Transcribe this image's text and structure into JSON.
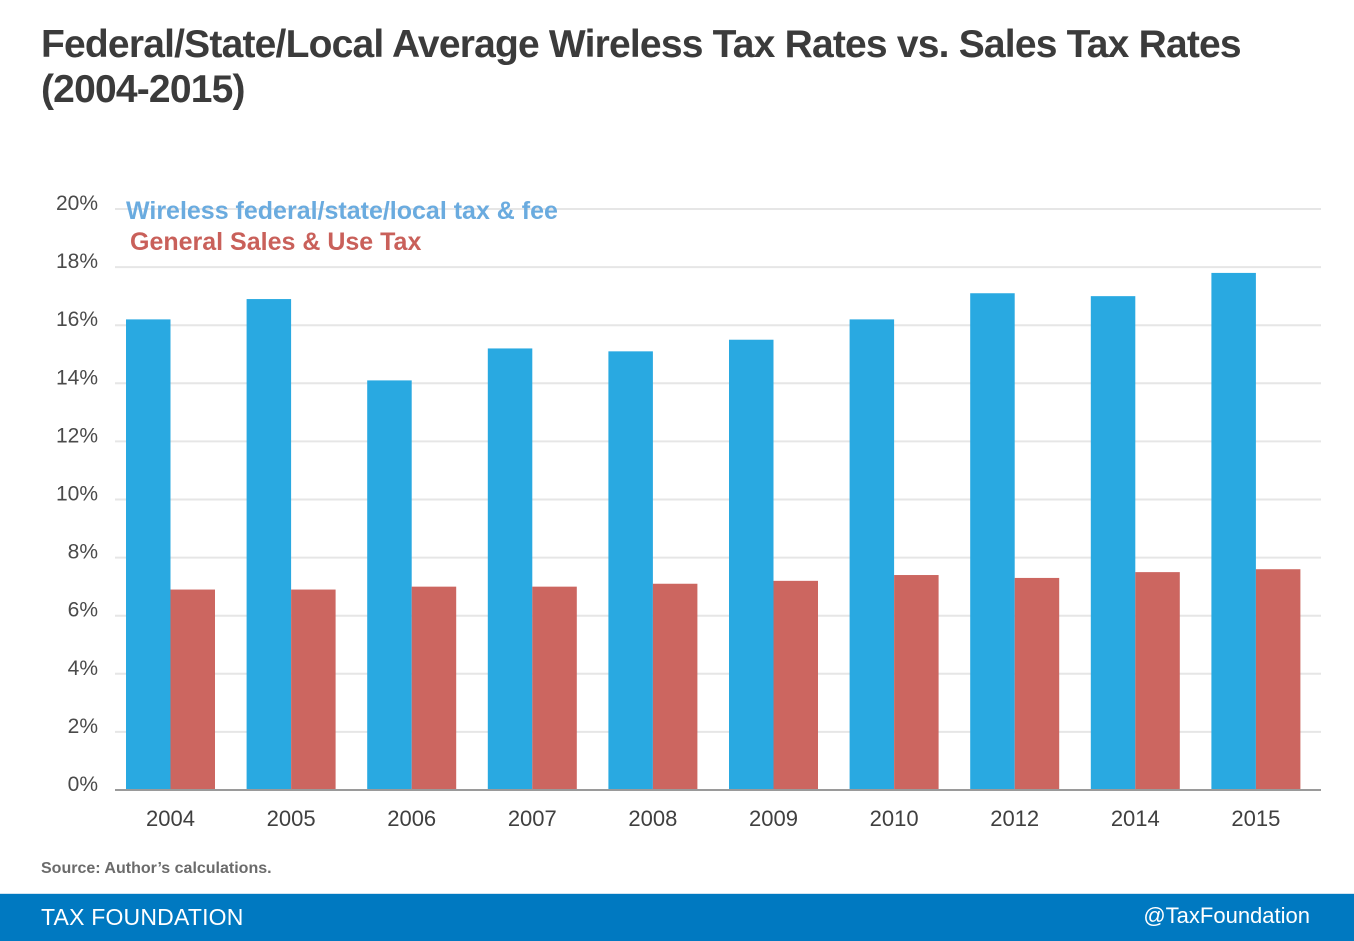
{
  "header": {
    "title_line1": "Federal/State/Local Average Wireless Tax Rates vs. Sales Tax Rates",
    "title_line2": "(2004-2015)"
  },
  "colors": {
    "wireless": "#29a9e1",
    "sales": "#cc6660",
    "legend_wireless": "#6aabdf",
    "legend_sales": "#c9605a",
    "gridline": "#e6e6e6",
    "axis": "#9a9a9a",
    "footer_bg": "#0079c1"
  },
  "chart_data": {
    "type": "bar",
    "title": "Federal/State/Local Average Wireless Tax Rates vs. Sales Tax Rates (2004-2015)",
    "xlabel": "",
    "ylabel": "",
    "categories": [
      "2004",
      "2005",
      "2006",
      "2007",
      "2008",
      "2009",
      "2010",
      "2012",
      "2014",
      "2015"
    ],
    "series": [
      {
        "name": "Wireless federal/state/local tax & fee",
        "values": [
          16.2,
          16.9,
          14.1,
          15.2,
          15.1,
          15.5,
          16.2,
          17.1,
          17.0,
          17.8
        ]
      },
      {
        "name": "General Sales & Use Tax",
        "values": [
          6.9,
          6.9,
          7.0,
          7.0,
          7.1,
          7.2,
          7.4,
          7.3,
          7.5,
          7.6
        ]
      }
    ],
    "ylim": [
      0,
      20
    ],
    "yticks": [
      0,
      2,
      4,
      6,
      8,
      10,
      12,
      14,
      16,
      18,
      20
    ],
    "ytick_labels": [
      "0%",
      "2%",
      "4%",
      "6%",
      "8%",
      "10%",
      "12%",
      "14%",
      "16%",
      "18%",
      "20%"
    ],
    "grid": true,
    "legend_position": "top-left"
  },
  "source": "Source: Author’s calculations.",
  "footer": {
    "brand": "TAX FOUNDATION",
    "handle": "@TaxFoundation"
  }
}
